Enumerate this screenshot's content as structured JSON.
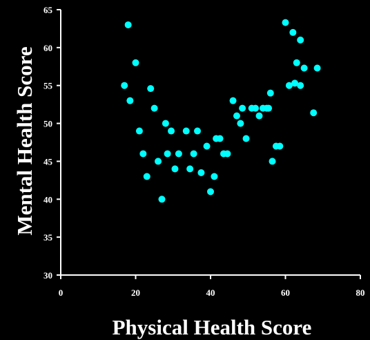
{
  "chart_data": {
    "type": "scatter",
    "xlabel": "Physical Health Score",
    "ylabel": "Mental Health Score",
    "xlim": [
      0,
      80
    ],
    "ylim": [
      30,
      65
    ],
    "x_ticks": [
      0,
      20,
      40,
      60,
      80
    ],
    "y_ticks": [
      30,
      35,
      40,
      45,
      50,
      55,
      60,
      65
    ],
    "grid": false,
    "legend": "none",
    "colors": {
      "background": "#000000",
      "axes": "#ffffff",
      "text": "#ffffff",
      "marker": "#00ffff"
    },
    "series": [
      {
        "x": [
          17,
          18,
          18.5,
          20,
          21,
          22,
          23,
          24,
          25,
          26,
          27,
          28,
          28.5,
          29.5,
          30.5,
          31.5,
          33.5,
          34.5,
          35.5,
          36.5,
          37.5,
          39,
          40,
          41,
          41.5,
          42.5,
          43.5,
          44.5,
          46,
          47,
          48,
          48.5,
          49.5,
          51,
          52,
          53,
          54,
          55,
          55.5,
          56,
          56.5,
          57.5,
          58.5,
          60,
          61,
          62,
          62.5,
          63,
          64,
          64,
          65,
          67.5,
          68.5
        ],
        "y": [
          55,
          63,
          53,
          58,
          49,
          46,
          43,
          54.6,
          52,
          45,
          40,
          50,
          46,
          49,
          44,
          46,
          49,
          44,
          46,
          49,
          43.5,
          47,
          41,
          43,
          48,
          48,
          46,
          46,
          53,
          51,
          50,
          52,
          48,
          52,
          52,
          51,
          52,
          52,
          52,
          54,
          45,
          47,
          47,
          63.3,
          55,
          62,
          55.3,
          58,
          55,
          61,
          57.3,
          51.4,
          57.3
        ]
      }
    ]
  }
}
